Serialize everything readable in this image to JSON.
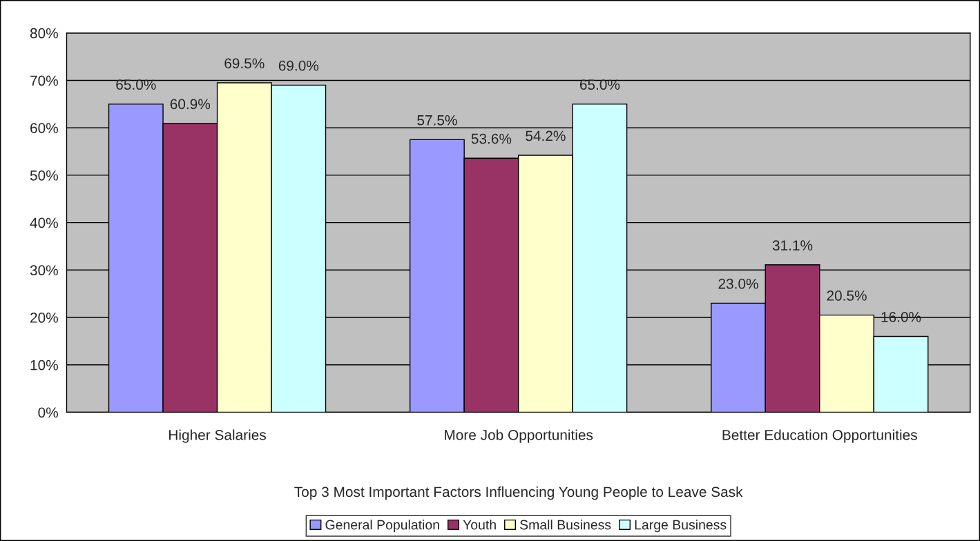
{
  "chart_data": {
    "type": "bar",
    "xlabel": "Top 3 Most Important Factors Influencing Young People to Leave Sask",
    "categories": [
      "Higher Salaries",
      "More Job Opportunities",
      "Better Education Opportunities"
    ],
    "series": [
      {
        "name": "General Population",
        "color": "#9999ff",
        "values": [
          65.0,
          57.5,
          23.0
        ],
        "value_labels": [
          "65.0%",
          "57.5%",
          "23.0%"
        ]
      },
      {
        "name": "Youth",
        "color": "#993366",
        "values": [
          60.9,
          53.6,
          31.1
        ],
        "value_labels": [
          "60.9%",
          "53.6%",
          "31.1%"
        ]
      },
      {
        "name": "Small Business",
        "color": "#ffffcc",
        "values": [
          69.5,
          54.2,
          20.5
        ],
        "value_labels": [
          "69.5%",
          "54.2%",
          "20.5%"
        ]
      },
      {
        "name": "Large Business",
        "color": "#ccffff",
        "values": [
          69.0,
          65.0,
          16.0
        ],
        "value_labels": [
          "69.0%",
          "65.0%",
          "16.0%"
        ]
      }
    ],
    "ylim": [
      0,
      80
    ],
    "yticks": [
      {
        "value": 0,
        "label": "0%"
      },
      {
        "value": 10,
        "label": "10%"
      },
      {
        "value": 20,
        "label": "20%"
      },
      {
        "value": 30,
        "label": "30%"
      },
      {
        "value": 40,
        "label": "40%"
      },
      {
        "value": 50,
        "label": "50%"
      },
      {
        "value": 60,
        "label": "60%"
      },
      {
        "value": 70,
        "label": "70%"
      },
      {
        "value": 80,
        "label": "80%"
      }
    ],
    "grid": "y",
    "legend": "bottom"
  }
}
